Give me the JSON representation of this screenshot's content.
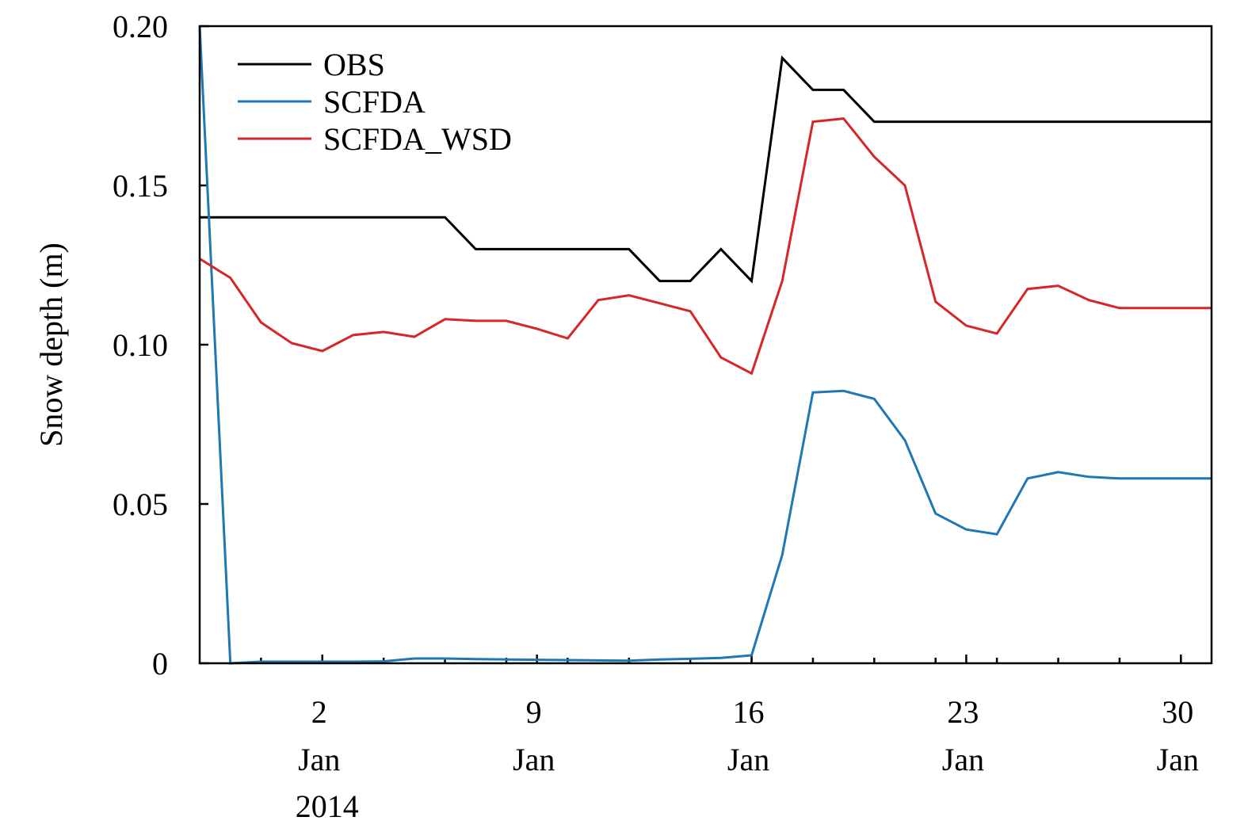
{
  "chart_data": {
    "type": "line",
    "title": "",
    "xlabel": "",
    "ylabel": "Snow depth (m)",
    "x_range": [
      "2013-12-29",
      "2014-01-31"
    ],
    "ylim": [
      0,
      0.2
    ],
    "grid": false,
    "legend_position": "top-left",
    "y_ticks": [
      {
        "value": 0,
        "label": "0"
      },
      {
        "value": 0.05,
        "label": "0.05"
      },
      {
        "value": 0.1,
        "label": "0.10"
      },
      {
        "value": 0.15,
        "label": "0.15"
      },
      {
        "value": 0.2,
        "label": "0.20"
      }
    ],
    "x_major_ticks": [
      {
        "date": "2014-01-02",
        "day": "2",
        "month": "Jan",
        "year": "2014"
      },
      {
        "date": "2014-01-09",
        "day": "9",
        "month": "Jan",
        "year": ""
      },
      {
        "date": "2014-01-16",
        "day": "16",
        "month": "Jan",
        "year": ""
      },
      {
        "date": "2014-01-23",
        "day": "23",
        "month": "Jan",
        "year": ""
      },
      {
        "date": "2014-01-30",
        "day": "30",
        "month": "Jan",
        "year": ""
      }
    ],
    "x": [
      "2013-12-29",
      "2013-12-30",
      "2013-12-31",
      "2014-01-01",
      "2014-01-02",
      "2014-01-03",
      "2014-01-04",
      "2014-01-05",
      "2014-01-06",
      "2014-01-07",
      "2014-01-08",
      "2014-01-09",
      "2014-01-10",
      "2014-01-11",
      "2014-01-12",
      "2014-01-13",
      "2014-01-14",
      "2014-01-15",
      "2014-01-16",
      "2014-01-17",
      "2014-01-18",
      "2014-01-19",
      "2014-01-20",
      "2014-01-21",
      "2014-01-22",
      "2014-01-23",
      "2014-01-24",
      "2014-01-25",
      "2014-01-26",
      "2014-01-27",
      "2014-01-28",
      "2014-01-29",
      "2014-01-30",
      "2014-01-31"
    ],
    "series": [
      {
        "name": "OBS",
        "color": "#000000",
        "values": [
          0.14,
          0.14,
          0.14,
          0.14,
          0.14,
          0.14,
          0.14,
          0.14,
          0.14,
          0.13,
          0.13,
          0.13,
          0.13,
          0.13,
          0.13,
          0.12,
          0.12,
          0.13,
          0.12,
          0.19,
          0.18,
          0.18,
          0.17,
          0.17,
          0.17,
          0.17,
          0.17,
          0.17,
          0.17,
          0.17,
          0.17,
          0.17,
          0.17,
          0.17
        ]
      },
      {
        "name": "SCFDA",
        "color": "#1f77b4",
        "values": [
          0.2,
          0.0,
          0.0005,
          0.0005,
          0.0005,
          0.0005,
          0.0006,
          0.0015,
          0.0015,
          0.0013,
          0.0012,
          0.0011,
          0.001,
          0.0009,
          0.0008,
          0.0012,
          0.0014,
          0.0017,
          0.0025,
          0.034,
          0.085,
          0.0855,
          0.083,
          0.07,
          0.047,
          0.042,
          0.0405,
          0.058,
          0.06,
          0.0585,
          0.058,
          0.058,
          0.058,
          0.058
        ]
      },
      {
        "name": "SCFDA_WSD",
        "color": "#d62728",
        "values": [
          0.127,
          0.121,
          0.107,
          0.1005,
          0.098,
          0.103,
          0.104,
          0.1025,
          0.108,
          0.1075,
          0.1075,
          0.105,
          0.102,
          0.114,
          0.1155,
          0.113,
          0.1105,
          0.096,
          0.091,
          0.12,
          0.17,
          0.171,
          0.159,
          0.15,
          0.1135,
          0.106,
          0.1035,
          0.1175,
          0.1185,
          0.114,
          0.1115,
          0.1115,
          0.1115,
          0.1115
        ]
      }
    ]
  }
}
